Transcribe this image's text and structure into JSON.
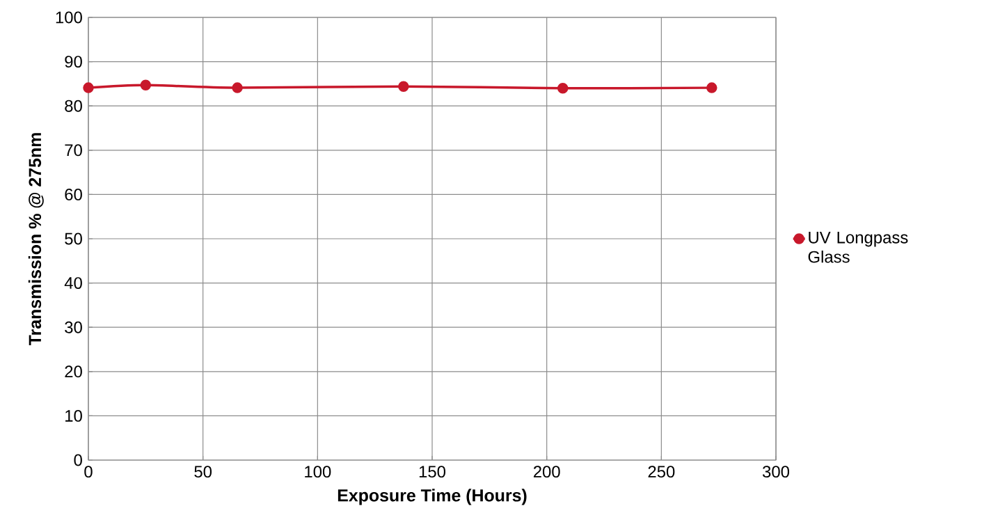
{
  "chart_data": {
    "type": "line",
    "xlabel": "Exposure Time (Hours)",
    "ylabel": "Transmission % @ 275nm",
    "x": [
      0,
      25,
      65,
      137.5,
      207,
      272
    ],
    "series": [
      {
        "name": "UV Longpass Glass",
        "color": "#c8182b",
        "values": [
          84.1,
          84.7,
          84.1,
          84.4,
          84.0,
          84.1
        ]
      }
    ],
    "xlim": [
      0,
      300
    ],
    "ylim": [
      0,
      100
    ],
    "xticks": [
      0,
      50,
      100,
      150,
      200,
      250,
      300
    ],
    "yticks": [
      0,
      10,
      20,
      30,
      40,
      50,
      60,
      70,
      80,
      90,
      100
    ],
    "grid": true,
    "legend": "right",
    "marker": "circle",
    "line_style": "solid"
  }
}
